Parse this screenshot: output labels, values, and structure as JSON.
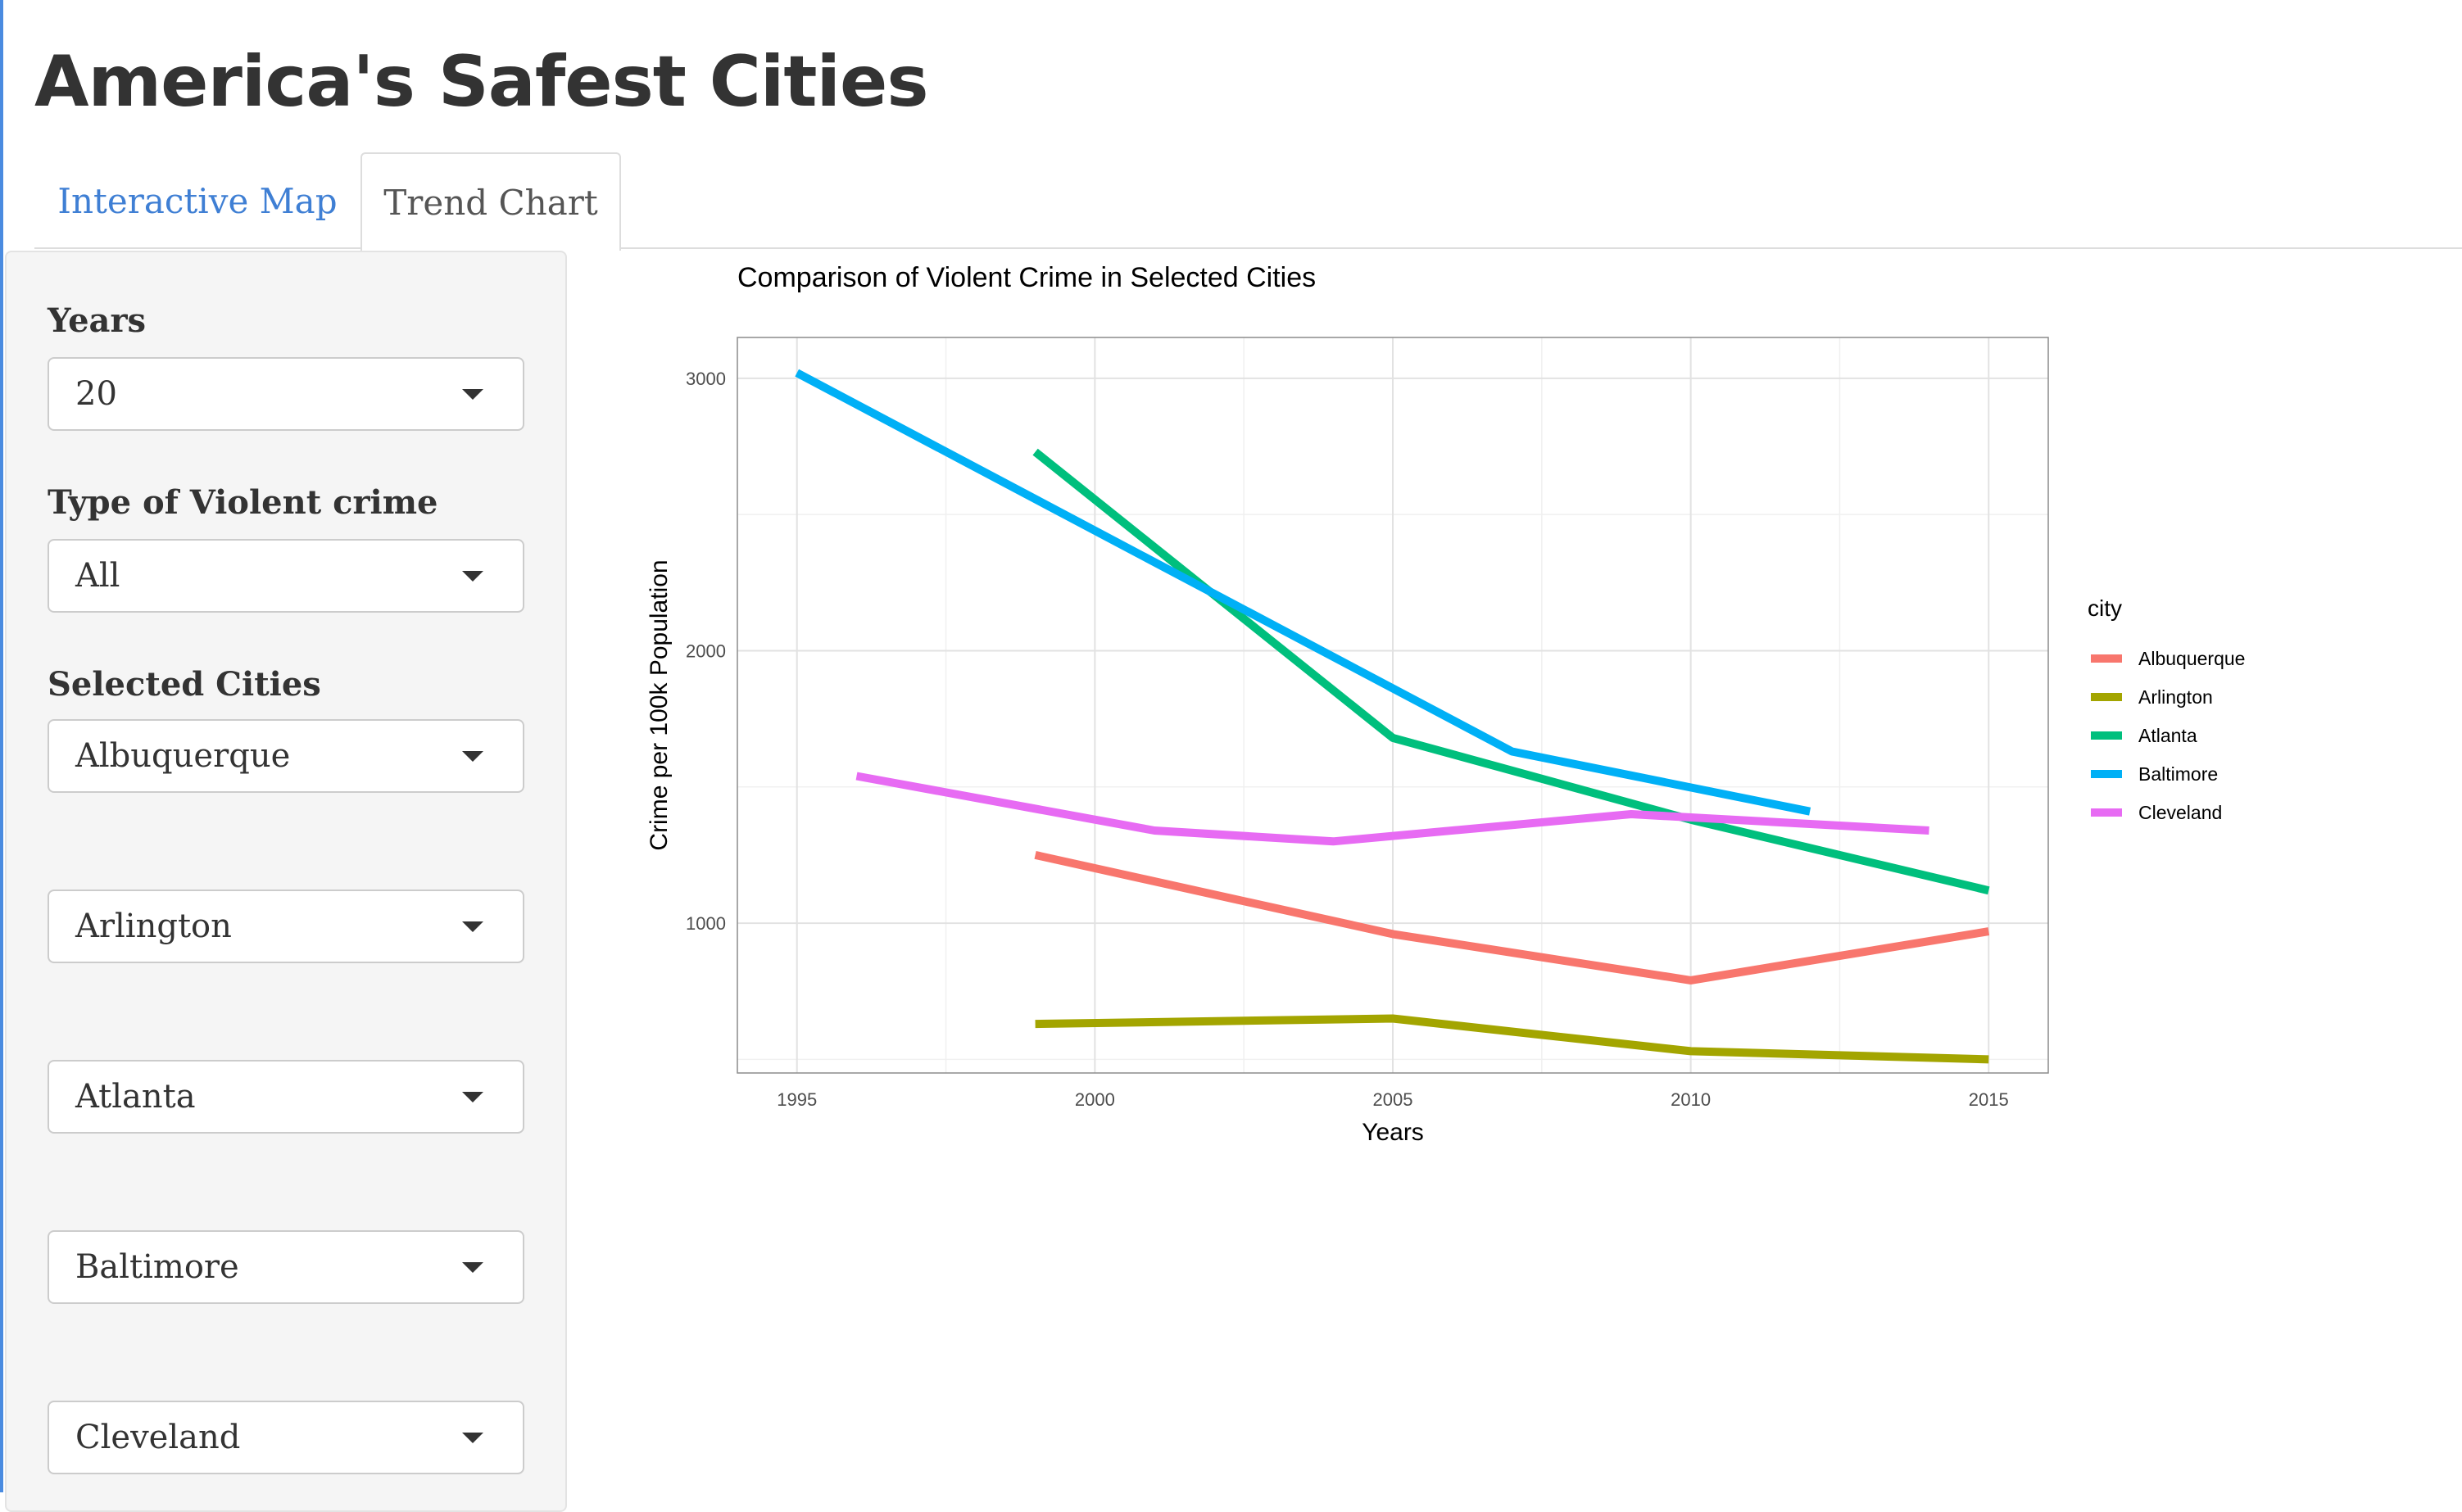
{
  "app": {
    "title": "America's Safest Cities"
  },
  "tabs": [
    {
      "label": "Interactive Map",
      "active": false
    },
    {
      "label": "Trend Chart",
      "active": true
    }
  ],
  "sidebar": {
    "years": {
      "label": "Years",
      "value": "20"
    },
    "crime_type": {
      "label": "Type of Violent crime",
      "value": "All"
    },
    "cities": {
      "label": "Selected Cities",
      "selects": [
        "Albuquerque",
        "Arlington",
        "Atlanta",
        "Baltimore",
        "Cleveland"
      ]
    },
    "icons": {
      "dropdown": "caret-down-icon"
    }
  },
  "chart_data": {
    "type": "line",
    "title": "Comparison of Violent Crime in Selected Cities",
    "xlabel": "Years",
    "ylabel": "Crime per 100k Population",
    "xlim": [
      1994,
      2016
    ],
    "ylim": [
      450,
      3150
    ],
    "x_ticks": [
      1995,
      2000,
      2005,
      2010,
      2015
    ],
    "y_ticks": [
      1000,
      2000,
      3000
    ],
    "grid": true,
    "legend": {
      "title": "city",
      "position": "right"
    },
    "series": [
      {
        "name": "Albuquerque",
        "color": "#F8766D",
        "points": [
          [
            1999,
            1250
          ],
          [
            2005,
            960
          ],
          [
            2010,
            790
          ],
          [
            2015,
            970
          ]
        ]
      },
      {
        "name": "Arlington",
        "color": "#A3A500",
        "points": [
          [
            1999,
            630
          ],
          [
            2005,
            650
          ],
          [
            2010,
            530
          ],
          [
            2015,
            500
          ]
        ]
      },
      {
        "name": "Atlanta",
        "color": "#00BF7D",
        "points": [
          [
            1999,
            2730
          ],
          [
            2005,
            1680
          ],
          [
            2010,
            1380
          ],
          [
            2015,
            1120
          ]
        ]
      },
      {
        "name": "Baltimore",
        "color": "#00B0F6",
        "points": [
          [
            1995,
            3020
          ],
          [
            2007,
            1630
          ],
          [
            2012,
            1410
          ]
        ]
      },
      {
        "name": "Cleveland",
        "color": "#E76BF3",
        "points": [
          [
            1996,
            1540
          ],
          [
            2001,
            1340
          ],
          [
            2004,
            1300
          ],
          [
            2009,
            1400
          ],
          [
            2014,
            1340
          ]
        ]
      }
    ]
  }
}
